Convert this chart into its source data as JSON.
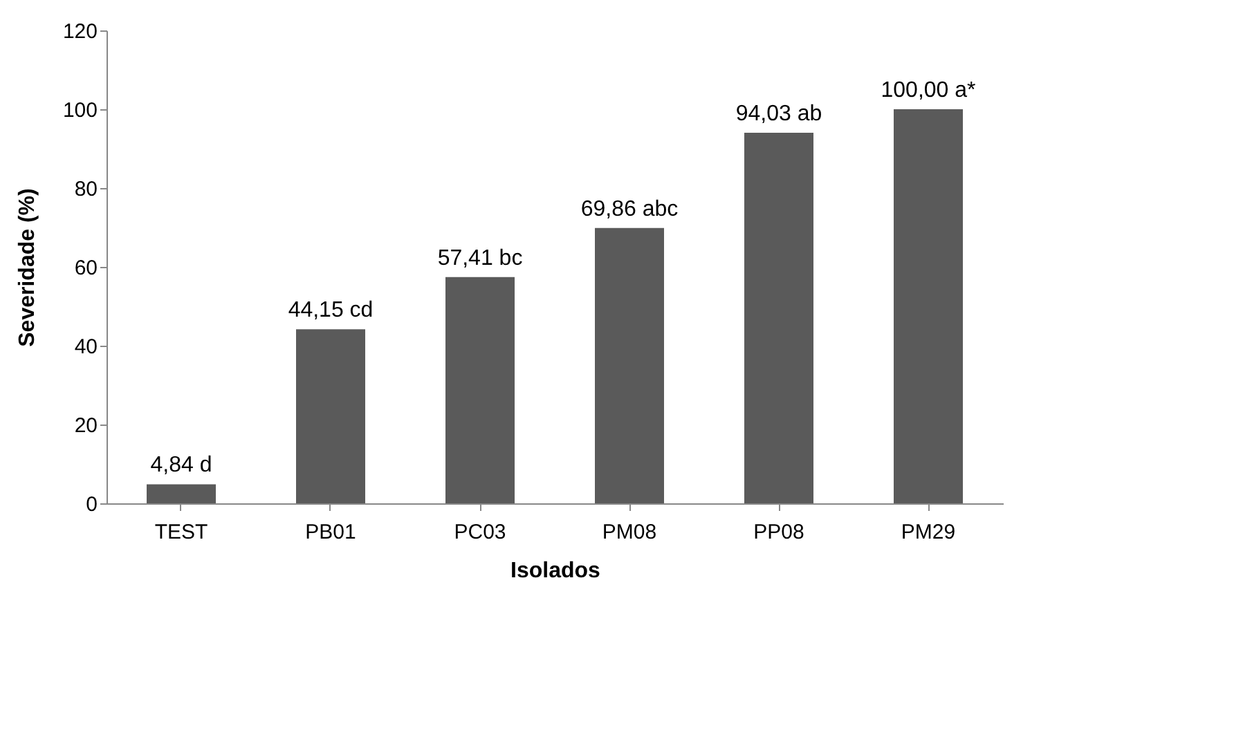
{
  "chart_data": {
    "type": "bar",
    "xlabel": "Isolados",
    "ylabel": "Severidade (%)",
    "categories": [
      "TEST",
      "PB01",
      "PC03",
      "PM08",
      "PP08",
      "PM29"
    ],
    "values": [
      4.84,
      44.15,
      57.41,
      69.86,
      94.03,
      100.0
    ],
    "value_labels": [
      "4,84 d",
      "44,15 cd",
      "57,41 bc",
      "69,86 abc",
      "94,03 ab",
      "100,00 a*"
    ],
    "color": "#5a5a5a",
    "ylim": [
      0,
      120
    ],
    "yticks": [
      0,
      20,
      40,
      60,
      80,
      100,
      120
    ],
    "grid": false
  }
}
